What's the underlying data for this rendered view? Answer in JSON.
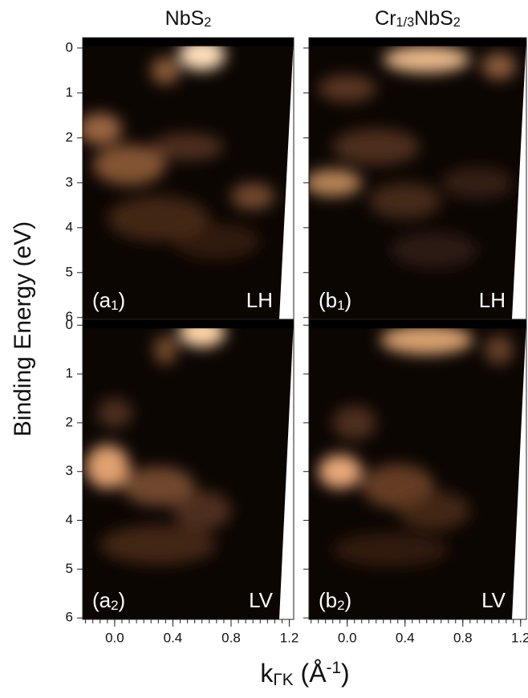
{
  "figure": {
    "ylabel": "Binding Energy (eV)",
    "xlabel": [
      {
        "text": "k",
        "style": "normal"
      },
      {
        "text": "ΓK",
        "style": "sub"
      },
      {
        "text": " (Å",
        "style": "normal"
      },
      {
        "text": "-1",
        "style": "sup"
      },
      {
        "text": ")",
        "style": "normal"
      }
    ]
  },
  "chart_data": [
    {
      "type": "image",
      "title": [
        {
          "text": "NbS",
          "style": "normal"
        },
        {
          "text": "2",
          "style": "sub"
        }
      ],
      "panel_label": [
        {
          "text": "(a",
          "style": "normal"
        },
        {
          "text": "1",
          "style": "sub"
        },
        {
          "text": ")",
          "style": "normal"
        }
      ],
      "mode": "LH",
      "xlim": [
        -0.22,
        1.23
      ],
      "ylim": [
        -0.23,
        6.04
      ],
      "xticks": [
        {
          "value": 0,
          "label": "0.0"
        },
        0.4,
        0.8,
        1.2
      ],
      "xtick_labels": false,
      "xminor_step": 0.05,
      "yticks": [
        0,
        1,
        2,
        3,
        4,
        5,
        6
      ],
      "ytick_labels": true,
      "sample": "NbS2"
    },
    {
      "type": "image",
      "title": [
        {
          "text": "Cr",
          "style": "normal"
        },
        {
          "text": "1/3",
          "style": "sub"
        },
        {
          "text": "NbS",
          "style": "normal"
        },
        {
          "text": "2",
          "style": "sub"
        }
      ],
      "panel_label": [
        {
          "text": "(b",
          "style": "normal"
        },
        {
          "text": "1",
          "style": "sub"
        },
        {
          "text": ")",
          "style": "normal"
        }
      ],
      "mode": "LH",
      "xlim": [
        -0.265,
        1.24
      ],
      "ylim": [
        -0.23,
        6.04
      ],
      "xticks": [
        {
          "value": 0,
          "label": "0.0"
        },
        0.4,
        0.8,
        1.2
      ],
      "xtick_labels": false,
      "xminor_step": 0.05,
      "yticks": [
        0,
        1,
        2,
        3,
        4,
        5,
        6
      ],
      "ytick_labels": false,
      "sample": "Cr"
    },
    {
      "type": "image",
      "panel_label": [
        {
          "text": "(a",
          "style": "normal"
        },
        {
          "text": "2",
          "style": "sub"
        },
        {
          "text": ")",
          "style": "normal"
        }
      ],
      "mode": "LV",
      "xlim": [
        -0.22,
        1.23
      ],
      "ylim": [
        -0.12,
        6.03
      ],
      "xticks": [
        {
          "value": 0,
          "label": "0.0"
        },
        0.4,
        0.8,
        1.2
      ],
      "xtick_labels": true,
      "xminor_step": 0.05,
      "yticks": [
        0,
        1,
        2,
        3,
        4,
        5,
        6
      ],
      "ytick_labels": true,
      "sample": "NbS2"
    },
    {
      "type": "image",
      "panel_label": [
        {
          "text": "(b",
          "style": "normal"
        },
        {
          "text": "2",
          "style": "sub"
        },
        {
          "text": ")",
          "style": "normal"
        }
      ],
      "mode": "LV",
      "xlim": [
        -0.265,
        1.24
      ],
      "ylim": [
        -0.12,
        6.03
      ],
      "xticks": [
        {
          "value": 0,
          "label": "0.0"
        },
        0.4,
        0.8,
        1.2
      ],
      "xtick_labels": true,
      "xminor_step": 0.05,
      "yticks": [
        0,
        1,
        2,
        3,
        4,
        5,
        6
      ],
      "ytick_labels": false,
      "sample": "Cr"
    }
  ]
}
